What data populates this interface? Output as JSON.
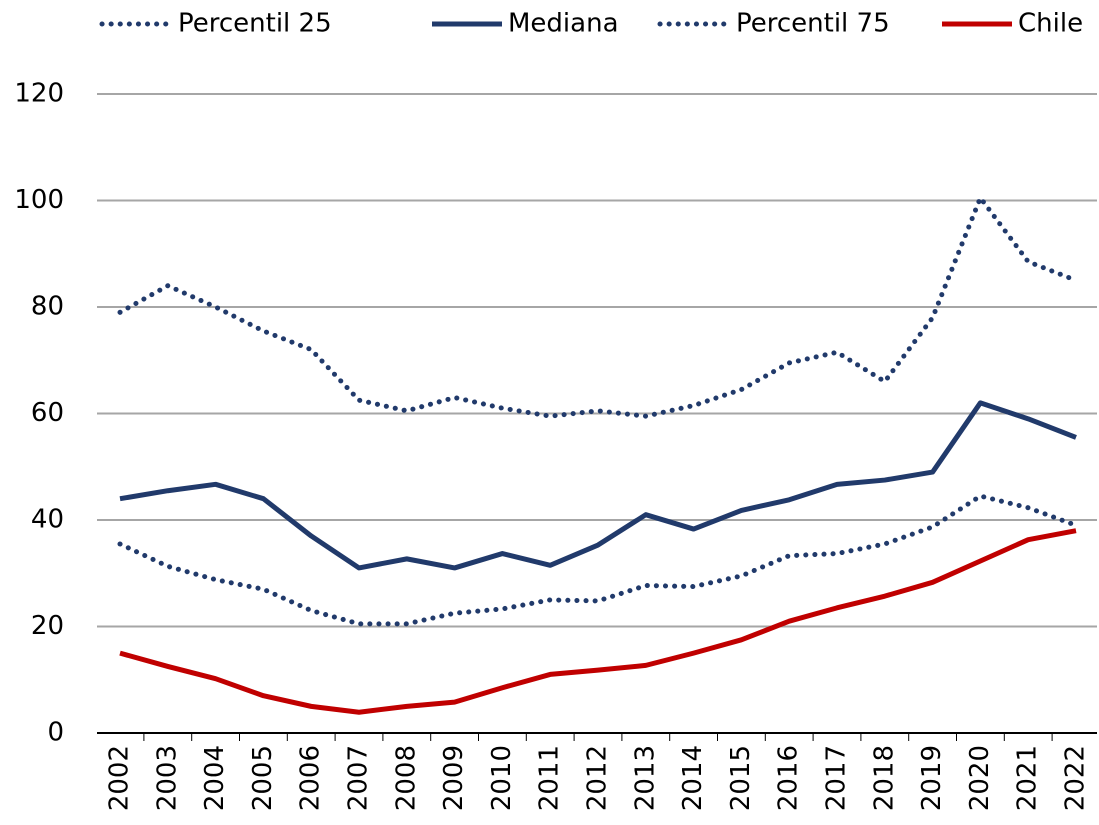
{
  "chart_data": {
    "type": "line",
    "x": [
      2002,
      2003,
      2004,
      2005,
      2006,
      2007,
      2008,
      2009,
      2010,
      2011,
      2012,
      2013,
      2014,
      2015,
      2016,
      2017,
      2018,
      2019,
      2020,
      2021,
      2022
    ],
    "series": [
      {
        "name": "Percentil 25",
        "color": "#213a6b",
        "style": "dotted",
        "values": [
          35.5,
          31.3,
          28.8,
          27,
          23,
          20.5,
          20.5,
          22.5,
          23.3,
          25,
          24.8,
          27.7,
          27.5,
          29.5,
          33.3,
          33.7,
          35.5,
          38.7,
          44.5,
          42.3,
          39
        ]
      },
      {
        "name": "Mediana",
        "color": "#213a6b",
        "style": "solid",
        "values": [
          44,
          45.5,
          46.7,
          44,
          37,
          31,
          32.7,
          31,
          33.7,
          31.5,
          35.3,
          41,
          38.3,
          41.8,
          43.8,
          46.7,
          47.5,
          49,
          62,
          59,
          55.5
        ]
      },
      {
        "name": "Percentil 75",
        "color": "#213a6b",
        "style": "dotted",
        "values": [
          79,
          84,
          80,
          75.5,
          72,
          62.5,
          60.5,
          63,
          61,
          59.5,
          60.5,
          59.5,
          61.5,
          64.5,
          69.5,
          71.5,
          66,
          78,
          100.5,
          88.5,
          85
        ]
      },
      {
        "name": "Chile",
        "color": "#c00000",
        "style": "solid",
        "values": [
          15,
          12.5,
          10.2,
          7,
          5,
          3.9,
          5,
          5.8,
          8.5,
          11,
          11.8,
          12.7,
          15,
          17.5,
          21,
          23.5,
          25.7,
          28.3,
          32.3,
          36.3,
          38
        ]
      }
    ],
    "ylim": [
      0,
      120
    ],
    "yticks": [
      0,
      20,
      40,
      60,
      80,
      100,
      120
    ],
    "grid": true,
    "legend": "top"
  }
}
